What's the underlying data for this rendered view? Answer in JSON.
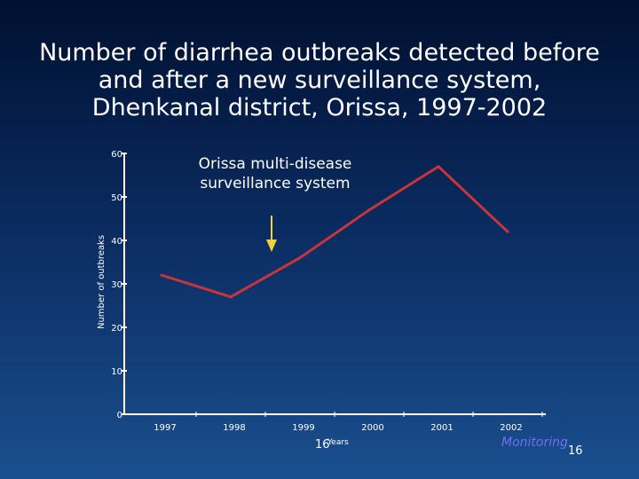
{
  "title": {
    "line1": "Number of diarrhea outbreaks detected before",
    "line2": "and after a new surveillance system,",
    "line3": "Dhenkanal district, Orissa, 1997-2002"
  },
  "annotation": {
    "line1": "Orissa multi-disease",
    "line2": "surveillance system"
  },
  "slide_number": "16",
  "footer": {
    "label": "Monitoring",
    "number": "16"
  },
  "colors": {
    "line": "#c8343c",
    "axis": "#ffffff",
    "arrow": "#f2d23c"
  },
  "chart_data": {
    "type": "line",
    "title": "Number of diarrhea outbreaks detected before and after a new surveillance system, Dhenkanal district, Orissa, 1997-2002",
    "xlabel": "Years",
    "ylabel": "Number of outbreaks",
    "categories": [
      "1997",
      "1998",
      "1999",
      "2000",
      "2001",
      "2002"
    ],
    "yticks": [
      0,
      10,
      20,
      30,
      40,
      50,
      60
    ],
    "ylim": [
      0,
      60
    ],
    "series": [
      {
        "values": [
          32,
          27,
          36,
          47,
          57,
          42
        ]
      }
    ],
    "annotation_text": "Orissa multi-disease surveillance system",
    "annotation_x": "1999",
    "grid": false
  }
}
